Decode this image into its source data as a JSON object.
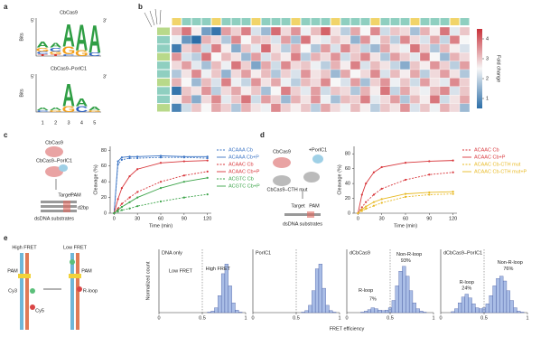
{
  "panel_labels": [
    "a",
    "b",
    "c",
    "d",
    "e"
  ],
  "panel_a": {
    "letter_colors": {
      "A": "#2f9e44",
      "C": "#2b5fc1",
      "G": "#f2a01c",
      "T": "#d6322b"
    },
    "xticks": [
      1,
      2,
      3,
      4,
      5
    ],
    "logos": [
      {
        "title": "CbCas9",
        "end5": "5′",
        "end3": "3′",
        "ylabel": "Bits",
        "ylim": [
          0,
          2
        ],
        "positions": [
          [
            {
              "letter": "T",
              "bits": 0.1
            },
            {
              "letter": "C",
              "bits": 0.15
            },
            {
              "letter": "G",
              "bits": 0.2
            },
            {
              "letter": "A",
              "bits": 0.3
            }
          ],
          [
            {
              "letter": "T",
              "bits": 0.1
            },
            {
              "letter": "G",
              "bits": 0.15
            },
            {
              "letter": "C",
              "bits": 0.2
            },
            {
              "letter": "A",
              "bits": 0.25
            }
          ],
          [
            {
              "letter": "C",
              "bits": 0.1
            },
            {
              "letter": "G",
              "bits": 0.4
            },
            {
              "letter": "A",
              "bits": 1.2
            }
          ],
          [
            {
              "letter": "G",
              "bits": 0.3
            },
            {
              "letter": "A",
              "bits": 1.4
            }
          ],
          [
            {
              "letter": "C",
              "bits": 0.2
            },
            {
              "letter": "A",
              "bits": 1.5
            }
          ]
        ]
      },
      {
        "title": "CbCas9–PorIC1",
        "end5": "5′",
        "end3": "3′",
        "ylabel": "Bits",
        "ylim": [
          0,
          2
        ],
        "positions": [
          [
            {
              "letter": "C",
              "bits": 0.1
            },
            {
              "letter": "A",
              "bits": 0.15
            }
          ],
          [
            {
              "letter": "G",
              "bits": 0.1
            },
            {
              "letter": "A",
              "bits": 0.15
            }
          ],
          [
            {
              "letter": "G",
              "bits": 0.3
            },
            {
              "letter": "A",
              "bits": 1.2
            }
          ],
          [
            {
              "letter": "C",
              "bits": 0.3
            },
            {
              "letter": "A",
              "bits": 0.4
            }
          ],
          [
            {
              "letter": "G",
              "bits": 0.1
            },
            {
              "letter": "A",
              "bits": 0.2
            }
          ]
        ]
      }
    ]
  },
  "chart_data": [
    {
      "type": "heatmap",
      "zlim": [
        0.5,
        4.5
      ],
      "colorscale": [
        "#2c6ea8",
        "#f7f7f7",
        "#c8313a"
      ],
      "colorbar_ticks": [
        1,
        2,
        3,
        4
      ],
      "colorbar_label": "Fold change",
      "values": [
        [
          3.1,
          3.8,
          2.6,
          1.2,
          0.6,
          3.4,
          2.9,
          3.7,
          2.2,
          1.6,
          3.9,
          2.8,
          3.5,
          2.4,
          3.1,
          4.0,
          2.7,
          1.9,
          3.3,
          2.5,
          3.6,
          2.1,
          3.0,
          2.8,
          1.7,
          3.2,
          2.6,
          3.8,
          2.3,
          3.0
        ],
        [
          2.4,
          1.1,
          0.5,
          3.2,
          2.8,
          1.8,
          3.6,
          2.5,
          3.1,
          2.9,
          2.2,
          3.4,
          1.7,
          3.8,
          2.6,
          2.3,
          3.0,
          2.7,
          1.5,
          3.5,
          2.4,
          3.1,
          1.9,
          3.6,
          2.8,
          2.2,
          3.3,
          2.0,
          3.7,
          2.5
        ],
        [
          0.7,
          2.9,
          3.3,
          2.1,
          3.7,
          2.6,
          1.4,
          3.0,
          2.3,
          3.9,
          2.7,
          1.9,
          3.2,
          2.5,
          1.8,
          3.4,
          2.2,
          3.6,
          2.9,
          2.0,
          1.6,
          3.3,
          2.7,
          2.4,
          3.8,
          2.9,
          1.8,
          3.1,
          2.6,
          2.2
        ],
        [
          3.5,
          2.2,
          1.9,
          3.8,
          2.5,
          3.1,
          2.7,
          1.6,
          3.4,
          2.2,
          3.0,
          2.6,
          3.7,
          1.9,
          3.2,
          2.8,
          3.5,
          2.1,
          3.0,
          3.6,
          2.7,
          1.8,
          3.4,
          2.9,
          2.3,
          3.7,
          2.5,
          1.6,
          3.2,
          2.8
        ],
        [
          2.8,
          3.4,
          2.3,
          1.7,
          3.1,
          2.4,
          3.8,
          2.9,
          1.3,
          3.3,
          2.1,
          3.6,
          2.8,
          3.0,
          2.4,
          1.9,
          3.2,
          2.6,
          3.7,
          2.2,
          3.1,
          2.7,
          2.0,
          1.4,
          3.0,
          2.6,
          3.5,
          2.9,
          1.9,
          3.4
        ],
        [
          1.8,
          2.7,
          3.6,
          2.4,
          3.0,
          1.5,
          2.8,
          3.4,
          2.6,
          3.1,
          1.8,
          2.9,
          2.2,
          3.5,
          2.7,
          3.0,
          1.6,
          3.3,
          2.5,
          2.8,
          3.6,
          2.2,
          3.1,
          2.6,
          3.3,
          1.9,
          2.8,
          3.4,
          2.7,
          1.8
        ],
        [
          3.2,
          2.5,
          1.6,
          3.1,
          2.2,
          3.7,
          2.4,
          2.0,
          3.5,
          2.7,
          3.3,
          2.4,
          1.9,
          3.1,
          2.8,
          3.6,
          2.5,
          2.2,
          3.4,
          1.7,
          2.9,
          3.5,
          2.4,
          3.0,
          2.1,
          3.4,
          2.7,
          2.3,
          3.6,
          2.9
        ],
        [
          0.6,
          3.0,
          2.7,
          3.5,
          1.9,
          2.8,
          3.3,
          2.6,
          3.0,
          1.7,
          2.5,
          3.7,
          2.9,
          2.3,
          3.4,
          2.1,
          3.0,
          2.8,
          1.8,
          3.2,
          2.6,
          3.8,
          2.0,
          3.3,
          2.7,
          2.4,
          3.1,
          3.6,
          2.2,
          3.0
        ],
        [
          2.6,
          3.3,
          1.4,
          2.8,
          3.6,
          2.3,
          3.0,
          3.8,
          2.1,
          3.4,
          2.9,
          1.6,
          3.2,
          2.7,
          3.5,
          2.4,
          1.7,
          3.1,
          2.9,
          3.7,
          2.3,
          2.8,
          3.4,
          1.8,
          3.1,
          2.6,
          3.8,
          2.1,
          2.7,
          3.3
        ],
        [
          0.8,
          2.1,
          3.0,
          2.5,
          3.3,
          2.9,
          1.8,
          3.2,
          2.7,
          2.4,
          3.6,
          2.9,
          2.6,
          3.0,
          1.9,
          3.3,
          2.8,
          2.4,
          3.1,
          2.6,
          1.9,
          3.0,
          2.7,
          3.5,
          2.2,
          3.0,
          2.4,
          3.2,
          2.8,
          1.6
        ]
      ]
    },
    {
      "type": "line",
      "xlabel": "Time (min)",
      "ylabel": "Cleavage (%)",
      "x": [
        0,
        5,
        10,
        20,
        30,
        60,
        90,
        120
      ],
      "xlim": [
        -5,
        125
      ],
      "xticks": [
        0,
        30,
        60,
        90,
        120
      ],
      "ylim": [
        0,
        85
      ],
      "yticks": [
        0,
        20,
        40,
        60,
        80
      ],
      "series": [
        {
          "name": "ACAAA Cb",
          "color": "#3b74c4",
          "style": "dashed",
          "values": [
            0,
            62,
            68,
            70,
            70,
            71,
            71,
            70
          ]
        },
        {
          "name": "ACAAA Cb+P",
          "color": "#3b74c4",
          "style": "solid",
          "values": [
            0,
            66,
            71,
            72,
            72,
            73,
            72,
            72
          ]
        },
        {
          "name": "ACAAC Cb",
          "color": "#d8363b",
          "style": "dashed",
          "values": [
            0,
            6,
            12,
            20,
            27,
            40,
            48,
            53
          ]
        },
        {
          "name": "ACAAC Cb+P",
          "color": "#d8363b",
          "style": "solid",
          "values": [
            0,
            18,
            32,
            47,
            56,
            64,
            66,
            67
          ]
        },
        {
          "name": "ACGTC Cb",
          "color": "#3aa348",
          "style": "dashed",
          "values": [
            0,
            2,
            4,
            6,
            9,
            15,
            20,
            24
          ]
        },
        {
          "name": "ACGTC Cb+P",
          "color": "#3aa348",
          "style": "solid",
          "values": [
            0,
            4,
            8,
            14,
            20,
            32,
            40,
            45
          ]
        }
      ]
    },
    {
      "type": "line",
      "xlabel": "Time (min)",
      "ylabel": "Cleavage (%)",
      "x": [
        0,
        5,
        10,
        20,
        30,
        60,
        90,
        120
      ],
      "xlim": [
        -5,
        125
      ],
      "xticks": [
        0,
        30,
        60,
        90,
        120
      ],
      "ylim": [
        0,
        90
      ],
      "yticks": [
        0,
        20,
        40,
        60,
        80
      ],
      "series": [
        {
          "name": "ACAAC Cb",
          "color": "#d8363b",
          "style": "dashed",
          "values": [
            0,
            8,
            15,
            25,
            33,
            45,
            52,
            55
          ]
        },
        {
          "name": "ACAAC Cb+P",
          "color": "#d8363b",
          "style": "solid",
          "values": [
            0,
            25,
            40,
            55,
            62,
            68,
            70,
            71
          ]
        },
        {
          "name": "ACAAC Cb-CTH mut",
          "color": "#e8b923",
          "style": "dashed",
          "values": [
            0,
            3,
            6,
            10,
            14,
            22,
            25,
            26
          ]
        },
        {
          "name": "ACAAC Cb-CTH mut+P",
          "color": "#e8b923",
          "style": "solid",
          "values": [
            0,
            5,
            9,
            15,
            19,
            26,
            28,
            29
          ]
        }
      ]
    },
    {
      "type": "histogram",
      "title": "DNA only",
      "annotations": [
        "Low FRET",
        "High FRET"
      ],
      "bins": [
        0,
        0.04,
        0.08,
        0.12,
        0.16,
        0.2,
        0.24,
        0.28,
        0.32,
        0.36,
        0.4,
        0.44,
        0.48,
        0.52,
        0.56,
        0.6,
        0.64,
        0.68,
        0.72,
        0.76,
        0.8,
        0.84,
        0.88,
        0.92,
        0.96,
        1
      ],
      "counts": [
        0,
        0,
        0,
        0,
        0,
        0,
        0,
        0,
        0,
        0,
        0,
        0,
        0,
        0,
        0.01,
        0.03,
        0.1,
        0.35,
        0.8,
        1,
        0.55,
        0.2,
        0.05,
        0.01,
        0
      ],
      "xlim": [
        0,
        1
      ],
      "xticks": [
        0,
        0.5,
        1
      ],
      "ylim": [
        0,
        1.3
      ],
      "threshold": 0.5,
      "color": "#a9bde6"
    },
    {
      "type": "histogram",
      "title": "PorIC1",
      "annotations": [],
      "bins": [
        0,
        0.04,
        0.08,
        0.12,
        0.16,
        0.2,
        0.24,
        0.28,
        0.32,
        0.36,
        0.4,
        0.44,
        0.48,
        0.52,
        0.56,
        0.6,
        0.64,
        0.68,
        0.72,
        0.76,
        0.8,
        0.84,
        0.88,
        0.92,
        0.96,
        1
      ],
      "counts": [
        0,
        0,
        0,
        0,
        0,
        0,
        0,
        0,
        0,
        0,
        0,
        0,
        0,
        0,
        0.01,
        0.04,
        0.15,
        0.45,
        0.9,
        1,
        0.5,
        0.15,
        0.04,
        0.01,
        0
      ],
      "xlim": [
        0,
        1
      ],
      "xticks": [
        0,
        0.5,
        1
      ],
      "ylim": [
        0,
        1.3
      ],
      "threshold": 0.5,
      "color": "#a9bde6"
    },
    {
      "type": "histogram",
      "title": "dCbCas9",
      "annotations": [
        "R-loop",
        "7%",
        "Non-R-loop",
        "93%"
      ],
      "bins": [
        0,
        0.04,
        0.08,
        0.12,
        0.16,
        0.2,
        0.24,
        0.28,
        0.32,
        0.36,
        0.4,
        0.44,
        0.48,
        0.52,
        0.56,
        0.6,
        0.64,
        0.68,
        0.72,
        0.76,
        0.8,
        0.84,
        0.88,
        0.92,
        0.96,
        1
      ],
      "counts": [
        0,
        0,
        0,
        0,
        0.01,
        0.03,
        0.06,
        0.1,
        0.08,
        0.05,
        0.04,
        0.05,
        0.1,
        0.25,
        0.55,
        0.85,
        0.95,
        0.75,
        0.45,
        0.2,
        0.08,
        0.03,
        0.01,
        0,
        0
      ],
      "xlim": [
        0,
        1
      ],
      "xticks": [
        0,
        0.5,
        1
      ],
      "ylim": [
        0,
        1.3
      ],
      "threshold": 0.5,
      "color": "#a9bde6"
    },
    {
      "type": "histogram",
      "title": "dCbCas9–PorIC1",
      "annotations": [
        "R-loop",
        "24%",
        "Non-R-loop",
        "76%"
      ],
      "bins": [
        0,
        0.04,
        0.08,
        0.12,
        0.16,
        0.2,
        0.24,
        0.28,
        0.32,
        0.36,
        0.4,
        0.44,
        0.48,
        0.52,
        0.56,
        0.6,
        0.64,
        0.68,
        0.72,
        0.76,
        0.8,
        0.84,
        0.88,
        0.92,
        0.96,
        1
      ],
      "counts": [
        0,
        0,
        0,
        0.02,
        0.08,
        0.2,
        0.32,
        0.38,
        0.3,
        0.18,
        0.1,
        0.08,
        0.1,
        0.18,
        0.35,
        0.55,
        0.7,
        0.75,
        0.65,
        0.45,
        0.25,
        0.1,
        0.03,
        0.01,
        0
      ],
      "xlim": [
        0,
        1
      ],
      "xticks": [
        0,
        0.5,
        1
      ],
      "ylim": [
        0,
        1.3
      ],
      "threshold": 0.5,
      "color": "#a9bde6"
    }
  ],
  "schematic_c": {
    "labels": [
      "CbCas9",
      "CbCas9–PorIC1",
      "Target",
      "PAM",
      "d2bp",
      "dsDNA substrates"
    ]
  },
  "schematic_d": {
    "labels": [
      "CbCas9",
      "+PorIC1",
      "CbCas9–CTH mut",
      "Target",
      "PAM",
      "dsDNA substrates"
    ]
  },
  "schematic_e": {
    "labels": [
      "High FRET",
      "Low FRET",
      "PAM",
      "PAM",
      "Cy3",
      "Cy5",
      "R-loop"
    ]
  },
  "panel_e": {
    "xlabel": "FRET efficiency",
    "ylabel": "Normalized count"
  }
}
